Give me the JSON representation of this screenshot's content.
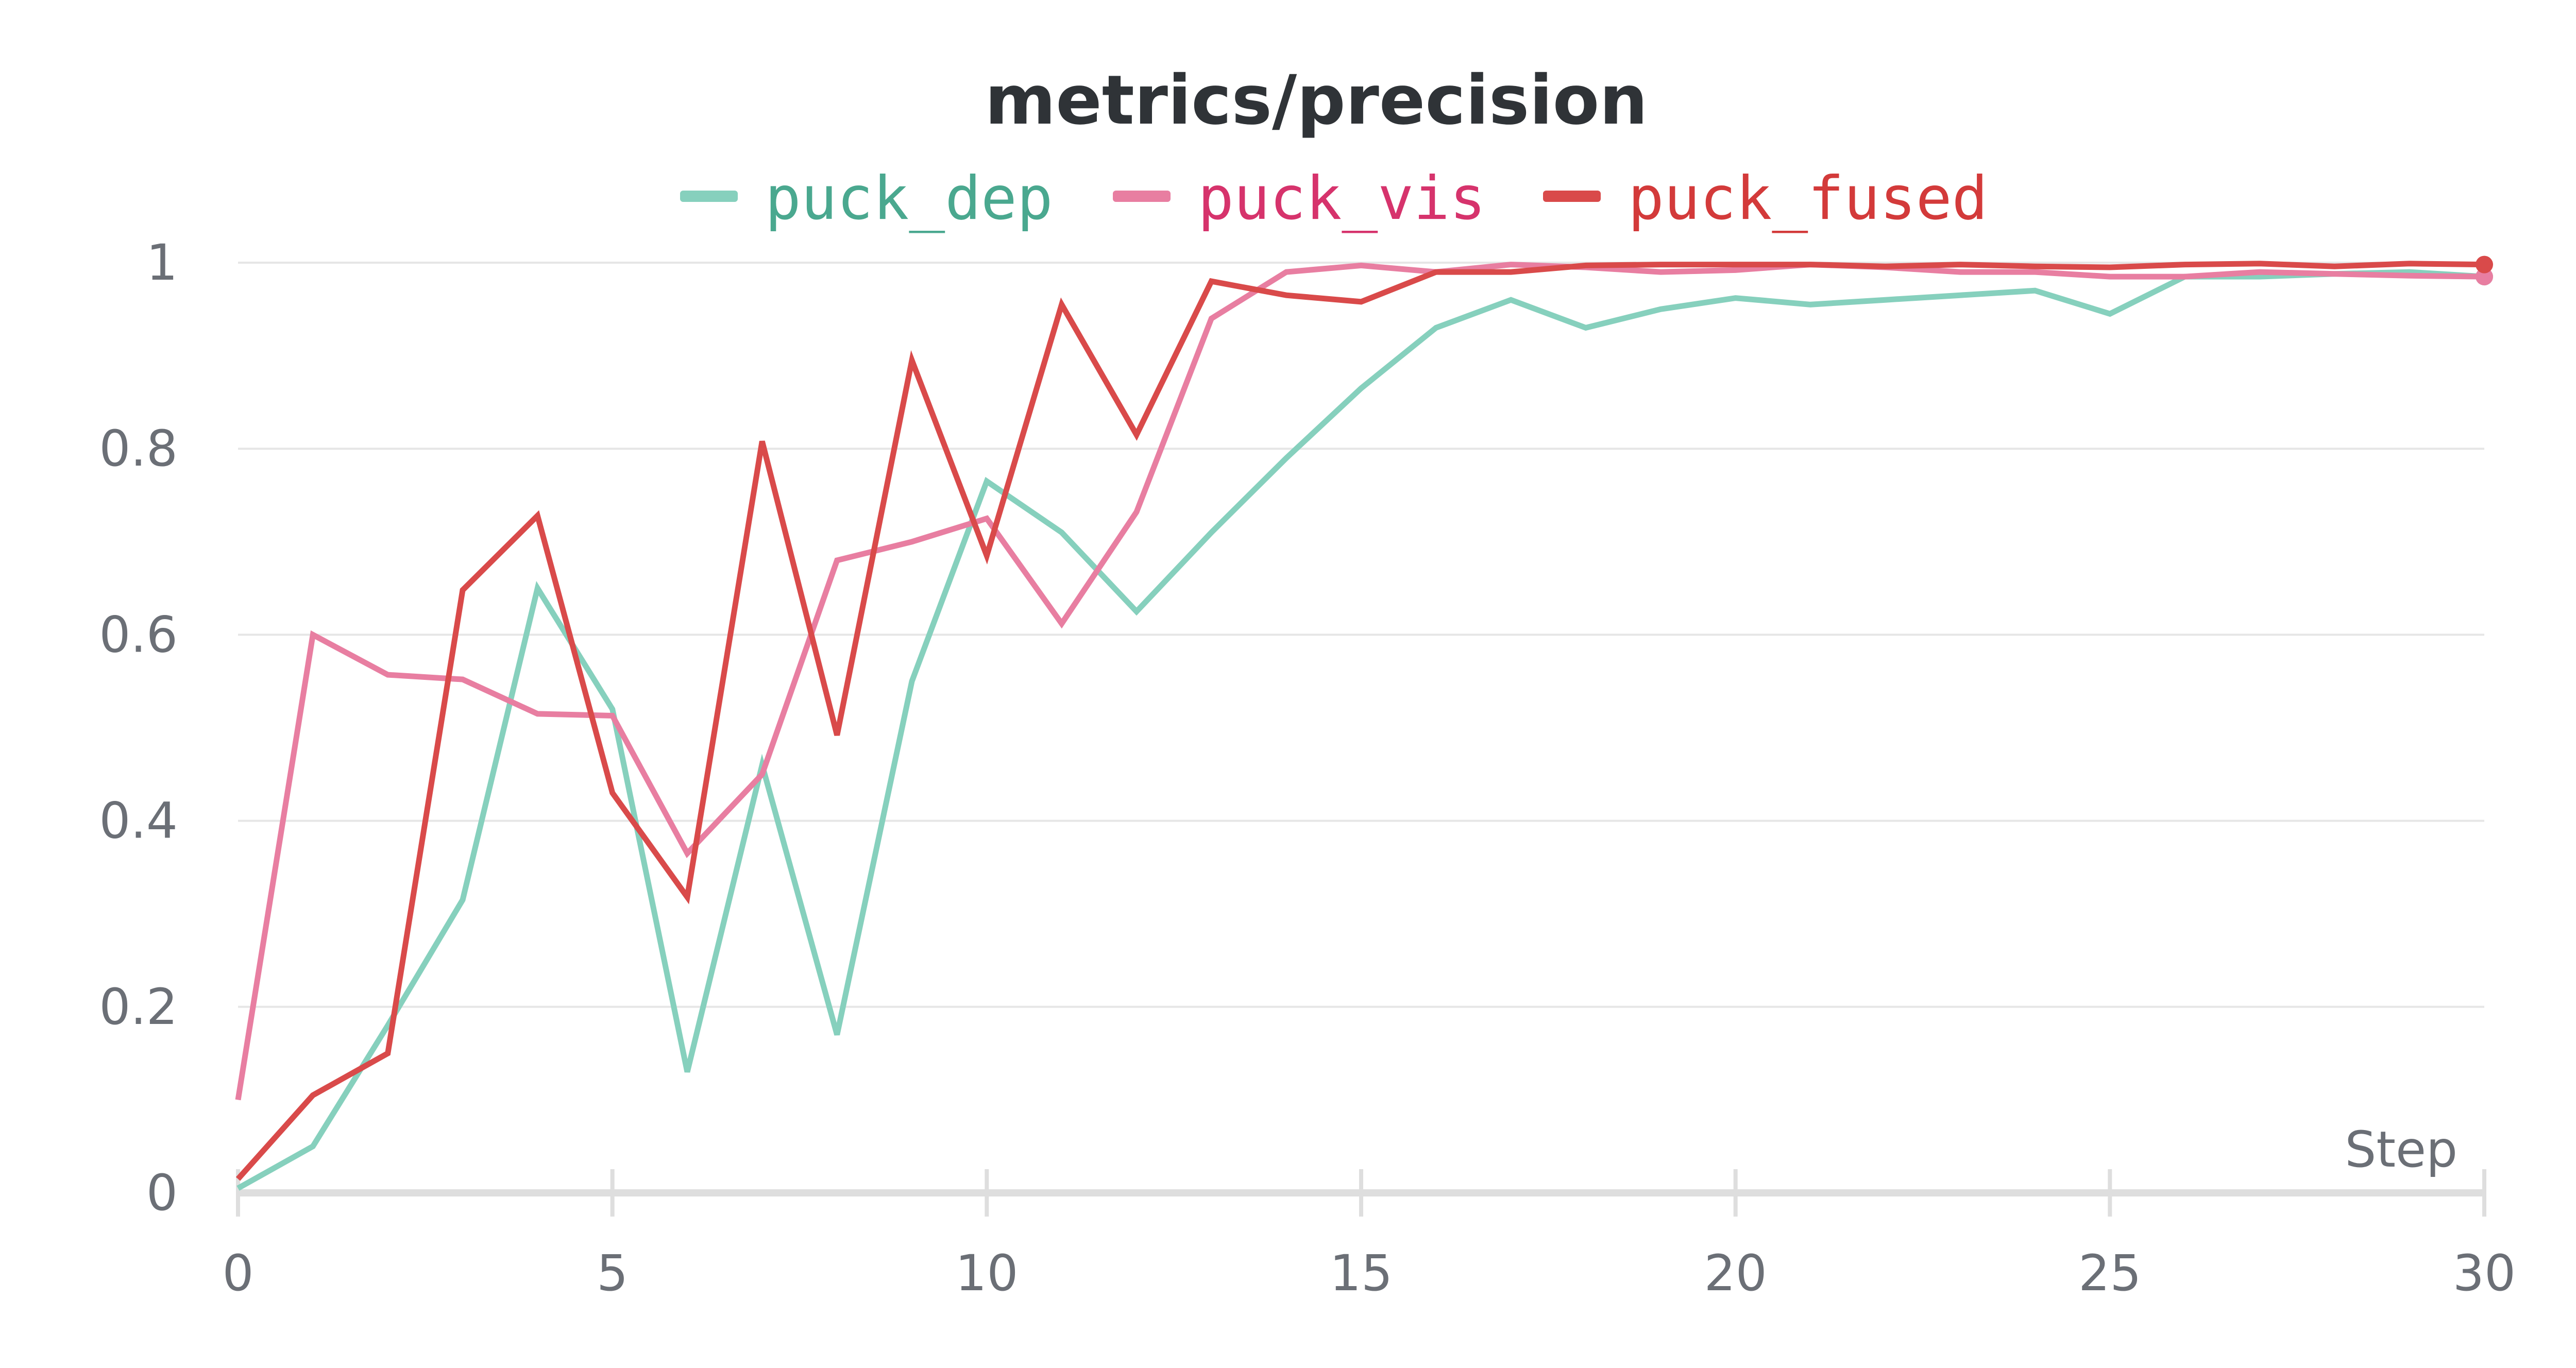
{
  "chart_data": {
    "type": "line",
    "title": "metrics/precision",
    "xlabel": "Step",
    "ylabel": "",
    "xlim": [
      0,
      30
    ],
    "ylim": [
      0,
      1
    ],
    "xticks": [
      0,
      5,
      10,
      15,
      20,
      25,
      30
    ],
    "yticks": [
      0,
      0.2,
      0.4,
      0.6,
      0.8,
      1
    ],
    "ytick_labels": [
      "0",
      "0.2",
      "0.4",
      "0.6",
      "0.8",
      "1"
    ],
    "grid": true,
    "legend_position": "top-center",
    "x": [
      0,
      1,
      2,
      3,
      4,
      5,
      6,
      7,
      8,
      9,
      10,
      11,
      12,
      13,
      14,
      15,
      16,
      17,
      18,
      19,
      20,
      21,
      22,
      23,
      24,
      25,
      26,
      27,
      28,
      29,
      30
    ],
    "series": [
      {
        "name": "puck_dep",
        "color": "#86d0bd",
        "text_color": "#4aa88f",
        "values": [
          0.005,
          0.05,
          0.18,
          0.315,
          0.65,
          0.52,
          0.13,
          0.46,
          0.17,
          0.55,
          0.765,
          0.71,
          0.625,
          0.71,
          0.79,
          0.865,
          0.93,
          0.96,
          0.93,
          0.95,
          0.962,
          0.955,
          0.96,
          0.965,
          0.97,
          0.945,
          0.985,
          0.985,
          0.988,
          0.99,
          0.985
        ]
      },
      {
        "name": "puck_vis",
        "color": "#e87ea1",
        "text_color": "#d6336c",
        "values": [
          0.1,
          0.6,
          0.557,
          0.552,
          0.515,
          0.513,
          0.365,
          0.45,
          0.68,
          0.7,
          0.725,
          0.612,
          0.732,
          0.94,
          0.99,
          0.997,
          0.99,
          0.998,
          0.995,
          0.99,
          0.992,
          0.998,
          0.995,
          0.99,
          0.99,
          0.985,
          0.985,
          0.99,
          0.988,
          0.986,
          0.985
        ]
      },
      {
        "name": "puck_fused",
        "color": "#d94a4a",
        "text_color": "#d33a3a",
        "values": [
          0.015,
          0.105,
          0.15,
          0.648,
          0.728,
          0.43,
          0.318,
          0.808,
          0.492,
          0.895,
          0.685,
          0.955,
          0.815,
          0.98,
          0.965,
          0.958,
          0.99,
          0.99,
          0.997,
          0.998,
          0.998,
          0.998,
          0.996,
          0.998,
          0.996,
          0.995,
          0.998,
          0.999,
          0.996,
          0.999,
          0.998
        ]
      }
    ]
  }
}
